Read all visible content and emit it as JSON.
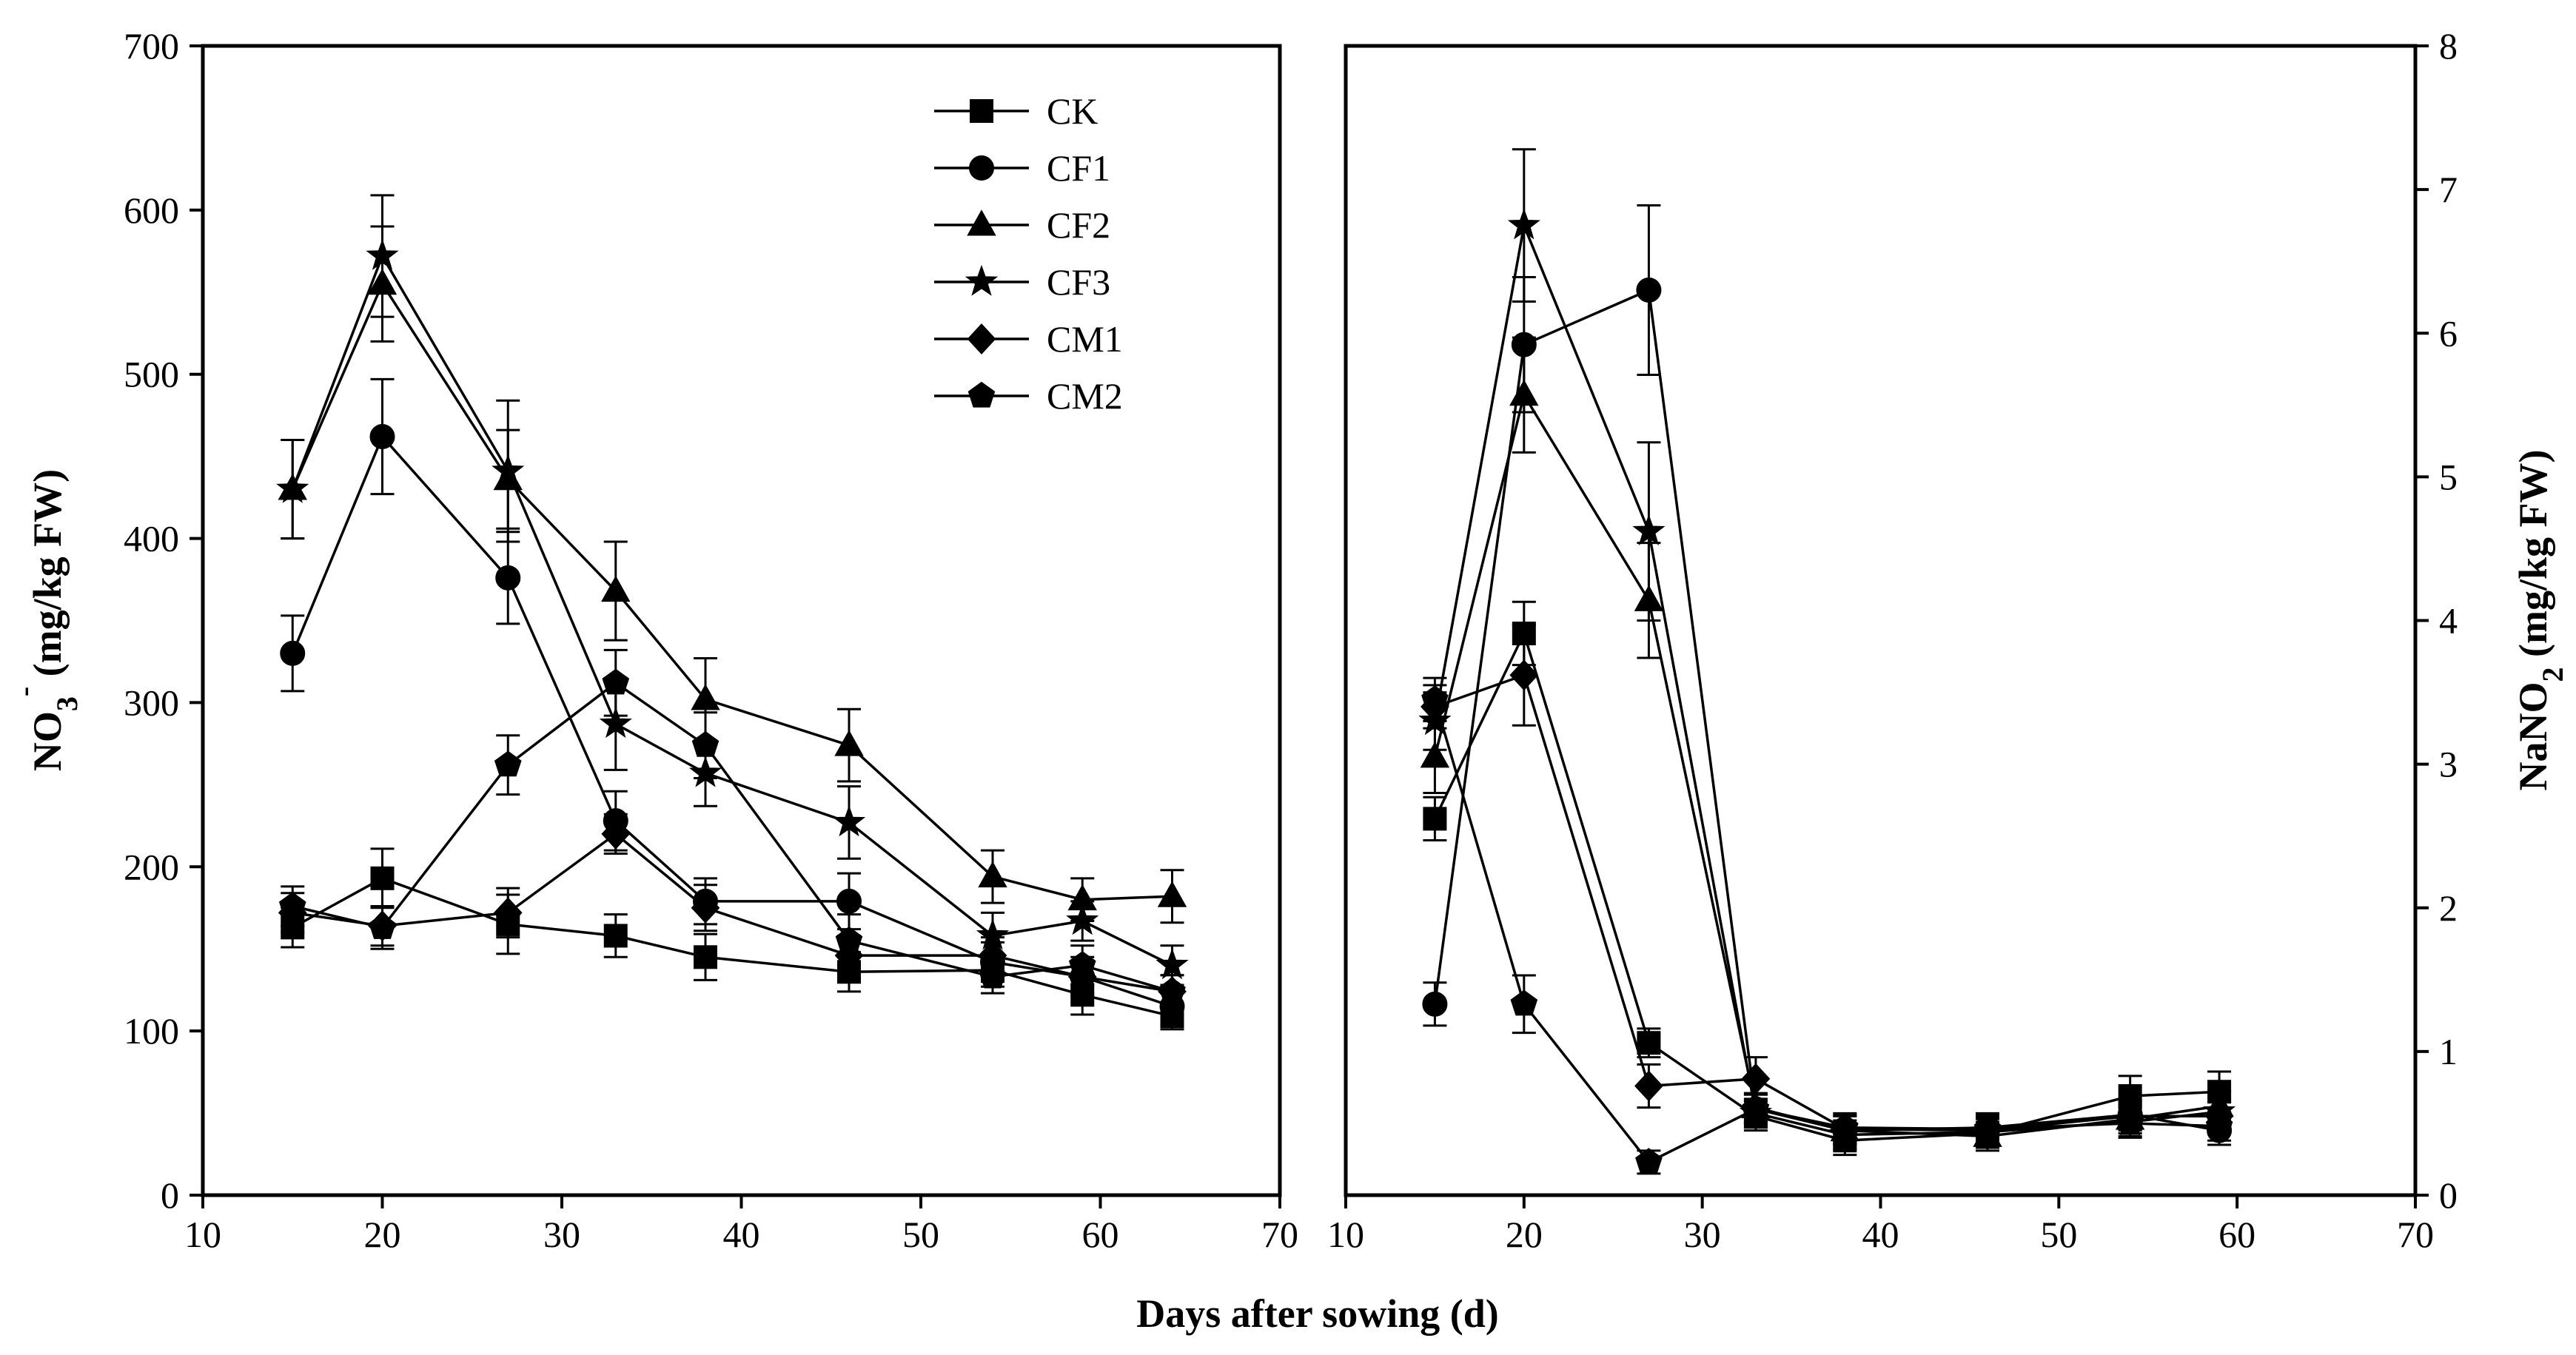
{
  "chart_data": [
    {
      "type": "line",
      "panel": "left",
      "ylabel_main": "NO",
      "ylabel_sub": "3",
      "ylabel_sup": "-",
      "ylabel_rest": " (mg/kg FW)",
      "xlim": [
        10,
        70
      ],
      "ylim": [
        0,
        700
      ],
      "x_ticks": [
        10,
        20,
        30,
        40,
        50,
        60,
        70
      ],
      "y_ticks": [
        0,
        100,
        200,
        300,
        400,
        500,
        600,
        700
      ],
      "x": [
        15,
        20,
        27,
        33,
        38,
        46,
        54,
        59,
        64
      ],
      "series": [
        {
          "name": "CK",
          "marker": "square",
          "values": [
            163,
            193,
            165,
            158,
            145,
            136,
            137,
            122,
            109
          ],
          "errors": [
            12,
            18,
            18,
            13,
            14,
            12,
            10,
            12,
            8
          ]
        },
        {
          "name": "CF1",
          "marker": "circle",
          "values": [
            330,
            462,
            376,
            228,
            179,
            179,
            142,
            133,
            115
          ],
          "errors": [
            23,
            35,
            28,
            18,
            14,
            17,
            12,
            12,
            10
          ]
        },
        {
          "name": "CF2",
          "marker": "triangle",
          "values": [
            430,
            555,
            436,
            368,
            302,
            274,
            194,
            180,
            182
          ],
          "errors": [
            30,
            35,
            30,
            30,
            25,
            22,
            16,
            13,
            16
          ]
        },
        {
          "name": "CF3",
          "marker": "star",
          "values": [
            430,
            572,
            441,
            287,
            257,
            227,
            158,
            167,
            140
          ],
          "errors": [
            30,
            37,
            43,
            28,
            20,
            22,
            14,
            12,
            12
          ]
        },
        {
          "name": "CM1",
          "marker": "diamond",
          "values": [
            172,
            164,
            172,
            220,
            175,
            146,
            146,
            133,
            124
          ],
          "errors": [
            12,
            12,
            15,
            12,
            14,
            12,
            11,
            10,
            10
          ]
        },
        {
          "name": "CM2",
          "marker": "pentagon",
          "values": [
            176,
            163,
            262,
            312,
            274,
            155,
            133,
            140,
            124
          ],
          "errors": [
            12,
            13,
            18,
            20,
            20,
            16,
            10,
            12,
            10
          ]
        }
      ]
    },
    {
      "type": "line",
      "panel": "right",
      "ylabel_main": "NaNO",
      "ylabel_sub": "2",
      "ylabel_rest": " (mg/kg FW)",
      "xlim": [
        10,
        70
      ],
      "ylim": [
        0,
        8
      ],
      "x_ticks": [
        10,
        20,
        30,
        40,
        50,
        60,
        70
      ],
      "y_ticks": [
        0,
        1,
        2,
        3,
        4,
        5,
        6,
        7,
        8
      ],
      "x": [
        15,
        20,
        27,
        33,
        38,
        46,
        54,
        59
      ],
      "series": [
        {
          "name": "CK",
          "marker": "square",
          "values": [
            2.62,
            3.91,
            1.06,
            0.55,
            0.38,
            0.43,
            0.69,
            0.72
          ],
          "errors": [
            0.15,
            0.22,
            0.1,
            0.1,
            0.1,
            0.1,
            0.14,
            0.14
          ]
        },
        {
          "name": "CF1",
          "marker": "circle",
          "values": [
            1.33,
            5.92,
            6.3,
            0.6,
            0.45,
            0.47,
            0.56,
            0.45
          ],
          "errors": [
            0.15,
            0.47,
            0.59,
            0.1,
            0.1,
            0.1,
            0.1,
            0.1
          ]
        },
        {
          "name": "CF2",
          "marker": "triangle",
          "values": [
            3.05,
            5.57,
            4.14,
            0.61,
            0.45,
            0.41,
            0.53,
            0.62
          ],
          "errors": [
            0.25,
            0.4,
            0.4,
            0.1,
            0.1,
            0.1,
            0.1,
            0.1
          ]
        },
        {
          "name": "CF3",
          "marker": "star",
          "values": [
            3.3,
            6.75,
            4.62,
            0.57,
            0.42,
            0.44,
            0.51,
            0.58
          ],
          "errors": [
            0.2,
            0.53,
            0.62,
            0.1,
            0.1,
            0.1,
            0.1,
            0.1
          ]
        },
        {
          "name": "CM1",
          "marker": "diamond",
          "values": [
            3.4,
            3.62,
            0.76,
            0.81,
            0.46,
            0.45,
            0.55,
            0.55
          ],
          "errors": [
            0.15,
            0.35,
            0.15,
            0.15,
            0.1,
            0.1,
            0.1,
            0.1
          ]
        },
        {
          "name": "CM2",
          "marker": "pentagon",
          "values": [
            3.45,
            1.33,
            0.23,
            0.6,
            0.47,
            0.46,
            0.5,
            0.48
          ],
          "errors": [
            0.15,
            0.2,
            0.08,
            0.1,
            0.1,
            0.1,
            0.1,
            0.1
          ]
        }
      ]
    }
  ],
  "xlabel": "Days after sowing (d)",
  "legend": [
    "CK",
    "CF1",
    "CF2",
    "CF3",
    "CM1",
    "CM2"
  ],
  "legend_position": "top-right of left panel",
  "colors": {
    "line": "#000000",
    "marker": "#000000",
    "background": "#ffffff"
  }
}
